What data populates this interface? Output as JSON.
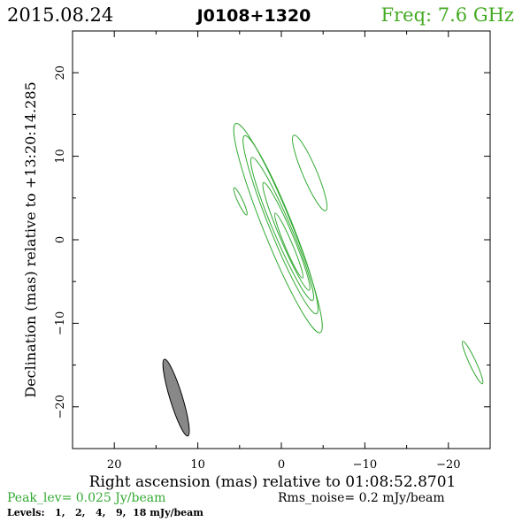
{
  "header": {
    "date": "2015.08.24",
    "source": "J0108+1320",
    "freq": "Freq: 7.6 GHz"
  },
  "footer": {
    "peak": "Peak_lev=  0.025 Jy/beam",
    "rms": "Rms_noise=  0.2 mJy/beam",
    "levels": "Levels:   1,   2,   4,   9,  18 mJy/beam"
  },
  "colors": {
    "contour": "#33aa33",
    "beam_fill": "#888888",
    "frame": "#000000",
    "freq_text": "#44aa22"
  },
  "chart_data": {
    "type": "contour",
    "xlabel": "Right ascension (mas) relative to 01:08:52.8701",
    "ylabel": "Declination (mas) relative to +13:20:14.285",
    "xlim": [
      25,
      -25
    ],
    "ylim": [
      -25,
      25
    ],
    "x_ticks": [
      20,
      10,
      0,
      -10,
      -20
    ],
    "y_ticks": [
      20,
      10,
      0,
      -10,
      -20
    ],
    "x_tick_labels": [
      "20",
      "10",
      "0",
      "−10",
      "−20"
    ],
    "y_tick_labels": [
      "20",
      "10",
      "0",
      "−10",
      "−20"
    ],
    "contours": [
      {
        "cx": 0.4,
        "cy": 1.4,
        "a": 13.5,
        "b": 1.7,
        "pa": -22
      },
      {
        "cx": 0.1,
        "cy": 1.8,
        "a": 11.5,
        "b": 1.35,
        "pa": -22
      },
      {
        "cx": -0.1,
        "cy": 1.3,
        "a": 9.3,
        "b": 1.05,
        "pa": -23
      },
      {
        "cx": -0.6,
        "cy": 0.4,
        "a": 7.0,
        "b": 0.75,
        "pa": -23
      },
      {
        "cx": -0.9,
        "cy": -0.7,
        "a": 4.2,
        "b": 0.45,
        "pa": -23
      },
      {
        "cx": -3.4,
        "cy": 8.0,
        "a": 4.9,
        "b": 0.85,
        "pa": -23
      },
      {
        "cx": 4.9,
        "cy": 4.6,
        "a": 1.8,
        "b": 0.3,
        "pa": -25
      },
      {
        "cx": -22.9,
        "cy": -14.7,
        "a": 2.8,
        "b": 0.4,
        "pa": -25
      }
    ],
    "beam": {
      "cx": 12.6,
      "cy": -18.9,
      "a": 4.8,
      "b": 0.75,
      "pa": -17
    }
  }
}
